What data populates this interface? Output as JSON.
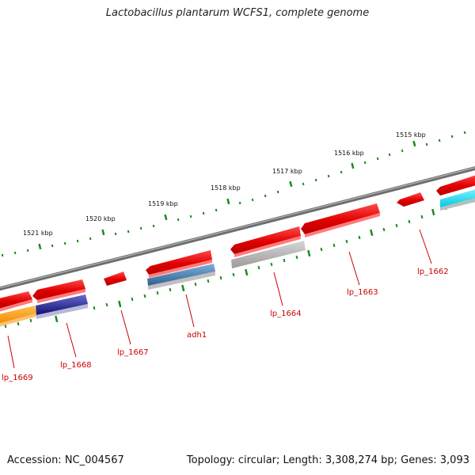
{
  "title": "Lactobacillus plantarum WCFS1, complete genome",
  "accession_text": "Accession: NC_004567",
  "meta_text": "Topology: circular; Length: 3,308,274 bp; Genes: 3,093",
  "kbp_labels": [
    "1515 kbp",
    "1516 kbp",
    "1517 kbp",
    "1518 kbp",
    "1519 kbp",
    "1520 kbp",
    "1521 kbp"
  ],
  "genes": [
    {
      "name": "lp_1662",
      "color": "#dd0000"
    },
    {
      "name": "lp_1663",
      "color": "#dd0000"
    },
    {
      "name": "lp_1664",
      "color": "#dd0000"
    },
    {
      "name": "adh1",
      "color": "#dd0000"
    },
    {
      "name": "lp_1667",
      "color": "#dd0000"
    },
    {
      "name": "lp_1668",
      "color": "#dd0000"
    },
    {
      "name": "lp_1669",
      "color": "#dd0000"
    }
  ],
  "colors": {
    "backbone": "#7a7a7a",
    "tick": "#1a8a1a",
    "gene_label": "#cc0000",
    "feature_red": "#ee1111",
    "feature_gray": "#a9a9a9",
    "feature_steelblue": "#4a7fb0",
    "feature_navy": "#1a1a8a",
    "feature_orange": "#ff9900",
    "feature_cyan": "#18e0f0"
  }
}
